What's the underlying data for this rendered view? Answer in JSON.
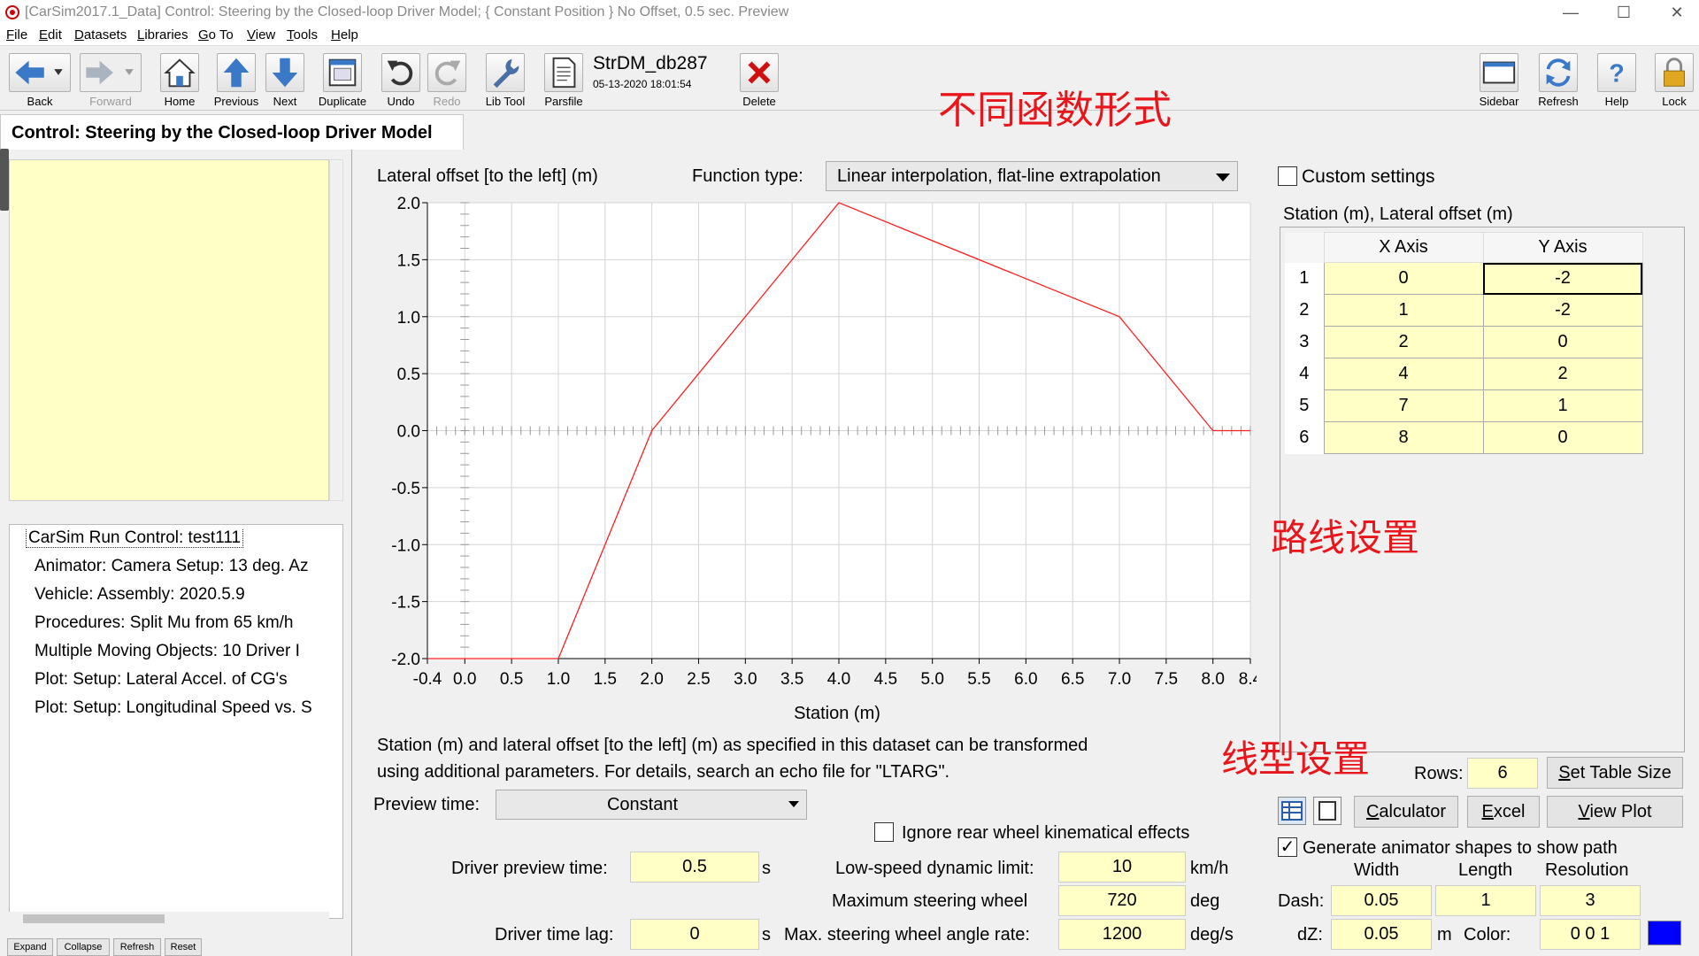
{
  "window": {
    "title": "[CarSim2017.1_Data] Control: Steering by the Closed-loop Driver Model; { Constant Position } No Offset, 0.5 sec. Preview",
    "minimize": "—",
    "maximize": "☐",
    "close": "✕"
  },
  "menu": [
    "File",
    "Edit",
    "Datasets",
    "Libraries",
    "Go To",
    "View",
    "Tools",
    "Help"
  ],
  "toolbar": {
    "back": "Back",
    "forward": "Forward",
    "home": "Home",
    "previous": "Previous",
    "next": "Next",
    "duplicate": "Duplicate",
    "undo": "Undo",
    "redo": "Redo",
    "libtool": "Lib Tool",
    "parsfile": "Parsfile",
    "delete": "Delete",
    "sidebar": "Sidebar",
    "refresh": "Refresh",
    "help": "Help",
    "lock": "Lock"
  },
  "dataset": {
    "name": "StrDM_db287",
    "date": "05-13-2020 18:01:54"
  },
  "annotations": {
    "function_forms": "不同函数形式",
    "route_settings": "路线设置",
    "line_settings": "线型设置"
  },
  "header": {
    "title": "Control: Steering by the Closed-loop Driver Model"
  },
  "tree": {
    "root": "CarSim Run Control: test111",
    "items": [
      "Animator: Camera Setup: 13 deg. Az",
      "Vehicle: Assembly: 2020.5.9",
      "Procedures: Split Mu from 65 km/h",
      "Multiple Moving Objects: 10 Driver I",
      "Plot: Setup: Lateral Accel. of CG's",
      "Plot: Setup: Longitudinal Speed vs. S"
    ]
  },
  "left_buttons": {
    "expand": "Expand",
    "collapse": "Collapse",
    "refresh": "Refresh",
    "reset": "Reset"
  },
  "function": {
    "label": "Function type:",
    "value": "Linear interpolation, flat-line extrapolation"
  },
  "chart_data": {
    "type": "line",
    "title": "Lateral offset [to the left] (m)",
    "xlabel": "Station (m)",
    "ylabel": "",
    "x": [
      -0.4,
      1,
      2,
      4,
      7,
      8,
      8.4
    ],
    "series": [
      {
        "values": [
          -2,
          -2,
          0,
          2,
          1,
          0,
          0
        ]
      }
    ],
    "xlim": [
      -0.4,
      8.4
    ],
    "ylim": [
      -2,
      2
    ],
    "xticks": [
      "-0.4",
      "0.0",
      "0.5",
      "1.0",
      "1.5",
      "2.0",
      "2.5",
      "3.0",
      "3.5",
      "4.0",
      "4.5",
      "5.0",
      "5.5",
      "6.0",
      "6.5",
      "7.0",
      "7.5",
      "8.0",
      "8.4"
    ],
    "yticks": [
      "2.0",
      "1.5",
      "1.0",
      "0.5",
      "0.0",
      "-0.5",
      "-1.0",
      "-1.5",
      "-2.0"
    ],
    "grid": true,
    "line_color": "#ff2020"
  },
  "description": {
    "line1": "Station (m) and lateral offset [to the left] (m) as specified in this dataset can be transformed",
    "line2": "using additional parameters. For details, search an echo file for \"LTARG\"."
  },
  "preview": {
    "label": "Preview time:",
    "value": "Constant"
  },
  "params": {
    "ignore_rear": "Ignore rear wheel kinematical effects",
    "driver_preview_label": "Driver preview time:",
    "driver_preview_value": "0.5",
    "driver_preview_unit": "s",
    "driver_lag_label": "Driver time lag:",
    "driver_lag_value": "0",
    "driver_lag_unit": "s",
    "low_speed_label": "Low-speed dynamic limit:",
    "low_speed_value": "10",
    "low_speed_unit": "km/h",
    "max_wheel_label": "Maximum steering wheel",
    "max_wheel_value": "720",
    "max_wheel_unit": "deg",
    "max_rate_label": "Max. steering wheel angle rate:",
    "max_rate_value": "1200",
    "max_rate_unit": "deg/s"
  },
  "table": {
    "custom_settings": "Custom settings",
    "title": "Station (m), Lateral offset (m)",
    "headers": [
      "X Axis",
      "Y Axis"
    ],
    "rows": [
      {
        "n": "1",
        "x": "0",
        "y": "-2"
      },
      {
        "n": "2",
        "x": "1",
        "y": "-2"
      },
      {
        "n": "3",
        "x": "2",
        "y": "0"
      },
      {
        "n": "4",
        "x": "4",
        "y": "2"
      },
      {
        "n": "5",
        "x": "7",
        "y": "1"
      },
      {
        "n": "6",
        "x": "8",
        "y": "0"
      }
    ],
    "rows_label": "Rows:",
    "rows_value": "6",
    "set_table_size": "Set Table Size",
    "calculator": "Calculator",
    "excel": "Excel",
    "view_plot": "View Plot"
  },
  "animator": {
    "generate": "Generate animator shapes to show path",
    "col_width": "Width",
    "col_length": "Length",
    "col_resolution": "Resolution",
    "dash_label": "Dash:",
    "dash_width": "0.05",
    "dash_length": "1",
    "dash_resolution": "3",
    "dz_label": "dZ:",
    "dz_value": "0.05",
    "dz_unit": "m",
    "color_label": "Color:",
    "color_value": "0 0 1",
    "color_swatch": "#0000ff"
  }
}
